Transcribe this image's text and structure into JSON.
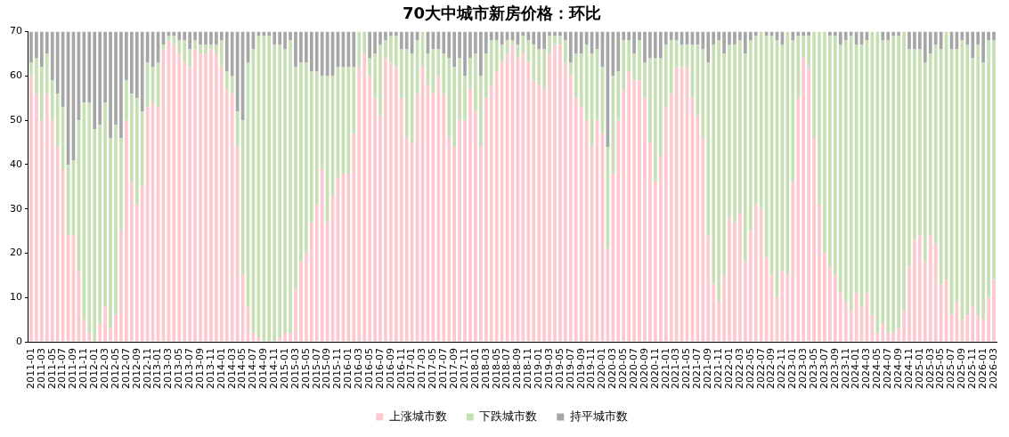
{
  "chart_data": {
    "type": "bar",
    "title": "70大中城市新房价格：环比",
    "stacked": true,
    "grid": false,
    "legend": "bottom",
    "categories": [
      "2011-01",
      null,
      "2011-03",
      null,
      "2011-05",
      null,
      "2011-07",
      null,
      "2011-09",
      null,
      "2011-11",
      null,
      "2012-01",
      null,
      "2012-03",
      null,
      "2012-05",
      null,
      "2012-07",
      null,
      "2012-09",
      null,
      "2012-11",
      null,
      "2013-01",
      null,
      "2013-03",
      null,
      "2013-05",
      null,
      "2013-07",
      null,
      "2013-09",
      null,
      "2013-11",
      null,
      "2014-01",
      null,
      "2014-03",
      null,
      "2014-05",
      null,
      "2014-07",
      null,
      "2014-09",
      null,
      "2014-11",
      null,
      "2015-01",
      null,
      "2015-03",
      null,
      "2015-05",
      null,
      "2015-07",
      null,
      "2015-09",
      null,
      "2015-11",
      null,
      "2016-01",
      null,
      "2016-03",
      null,
      "2016-05",
      null,
      "2016-07",
      null,
      "2016-09",
      null,
      "2016-11",
      null,
      "2017-01",
      null,
      "2017-03",
      null,
      "2017-05",
      null,
      "2017-07",
      null,
      "2017-09",
      null,
      "2017-11",
      null,
      "2018-01",
      null,
      "2018-03",
      null,
      "2018-05",
      null,
      "2018-07",
      null,
      "2018-09",
      null,
      "2018-11",
      null,
      "2019-01",
      null,
      "2019-03",
      null,
      "2019-05",
      null,
      "2019-07",
      null,
      "2019-09",
      null,
      "2019-11",
      null,
      "2020-01",
      null,
      "2020-03",
      null,
      "2020-05",
      null,
      "2020-07",
      null,
      "2020-09",
      null,
      "2020-11",
      null,
      "2021-01",
      null,
      "2021-03",
      null,
      "2021-05",
      null,
      "2021-07",
      null,
      "2021-09",
      null,
      "2021-11",
      null,
      "2022-01",
      null,
      "2022-03",
      null,
      "2022-05",
      null,
      "2022-07",
      null,
      "2022-09",
      null,
      "2022-11",
      null,
      "2023-01",
      null,
      "2023-03",
      null,
      "2023-05",
      null,
      "2023-07",
      null,
      "2023-09",
      null,
      "2023-11",
      null,
      "2024-01",
      null,
      "2024-03",
      null,
      "2024-05",
      null,
      "2024-07",
      null,
      "2024-09",
      null,
      "2024-11",
      null,
      "2025-01",
      null,
      "2025-03",
      null,
      "2025-05",
      null,
      "2025-07",
      null,
      "2025-09",
      null,
      "2025-11",
      null,
      "2026-01",
      null,
      "2026-03"
    ],
    "ylim": [
      0,
      70
    ],
    "yticks": [
      0,
      10,
      20,
      30,
      40,
      50,
      60,
      70
    ],
    "series": [
      {
        "name": "上涨城市数",
        "color": "#ffc7ce",
        "values": [
          60,
          56,
          50,
          56,
          50,
          44,
          39,
          24,
          24,
          16,
          5,
          2,
          0,
          4,
          8,
          3,
          6,
          25,
          50,
          36,
          31,
          35,
          53,
          54,
          53,
          66,
          68,
          67,
          65,
          63,
          62,
          66,
          65,
          65,
          66,
          65,
          62,
          57,
          56,
          44,
          15,
          8,
          2,
          1,
          0,
          0,
          0,
          1,
          2,
          2,
          12,
          18,
          20,
          27,
          31,
          39,
          27,
          33,
          37,
          38,
          38,
          47,
          62,
          65,
          60,
          55,
          51,
          64,
          63,
          62,
          55,
          46,
          45,
          56,
          62,
          58,
          56,
          60,
          56,
          46,
          44,
          50,
          50,
          57,
          52,
          44,
          55,
          58,
          61,
          63,
          65,
          67,
          64,
          65,
          63,
          59,
          58,
          57,
          65,
          67,
          67,
          63,
          60,
          55,
          53,
          50,
          44,
          50,
          47,
          21,
          38,
          50,
          57,
          61,
          59,
          59,
          55,
          45,
          36,
          42,
          53,
          56,
          62,
          62,
          62,
          55,
          51,
          46,
          24,
          13,
          9,
          15,
          28,
          27,
          29,
          18,
          25,
          31,
          30,
          19,
          15,
          10,
          16,
          15,
          36,
          55,
          64,
          62,
          46,
          31,
          20,
          17,
          15,
          11,
          9,
          7,
          11,
          8,
          11,
          6,
          2,
          4,
          2,
          2,
          3,
          7,
          17,
          23,
          24,
          18,
          24,
          22,
          13,
          14,
          6,
          9,
          5,
          6,
          8,
          6,
          5,
          10,
          14
        ]
      },
      {
        "name": "下跌城市数",
        "color": "#c6e0b4",
        "values": [
          3,
          8,
          12,
          9,
          9,
          12,
          14,
          16,
          17,
          34,
          49,
          52,
          48,
          45,
          46,
          43,
          43,
          21,
          9,
          20,
          24,
          17,
          10,
          8,
          10,
          1,
          1,
          2,
          3,
          5,
          4,
          2,
          2,
          2,
          1,
          2,
          6,
          4,
          4,
          8,
          35,
          55,
          64,
          68,
          69,
          69,
          67,
          66,
          64,
          66,
          50,
          45,
          43,
          34,
          30,
          21,
          33,
          27,
          25,
          24,
          24,
          15,
          8,
          5,
          4,
          10,
          16,
          4,
          6,
          7,
          11,
          20,
          20,
          12,
          8,
          7,
          10,
          6,
          9,
          18,
          18,
          14,
          10,
          7,
          13,
          16,
          10,
          10,
          7,
          4,
          3,
          1,
          3,
          4,
          5,
          8,
          8,
          9,
          4,
          2,
          2,
          5,
          3,
          10,
          12,
          17,
          21,
          16,
          15,
          23,
          22,
          11,
          11,
          7,
          6,
          9,
          8,
          19,
          28,
          22,
          14,
          12,
          6,
          5,
          5,
          12,
          16,
          20,
          39,
          54,
          59,
          50,
          39,
          40,
          39,
          47,
          43,
          38,
          40,
          50,
          54,
          58,
          51,
          55,
          32,
          14,
          5,
          7,
          24,
          39,
          50,
          52,
          54,
          56,
          59,
          62,
          56,
          59,
          57,
          64,
          68,
          64,
          66,
          67,
          66,
          63,
          49,
          43,
          42,
          45,
          41,
          45,
          53,
          56,
          60,
          57,
          63,
          61,
          56,
          61,
          58,
          58,
          54
        ]
      },
      {
        "name": "持平城市数",
        "color": "#a6a6a6",
        "values": [
          7,
          6,
          8,
          5,
          11,
          14,
          17,
          30,
          29,
          20,
          16,
          16,
          22,
          21,
          16,
          24,
          21,
          24,
          11,
          14,
          15,
          18,
          7,
          8,
          7,
          3,
          1,
          1,
          2,
          2,
          4,
          2,
          3,
          3,
          3,
          3,
          2,
          9,
          10,
          18,
          20,
          7,
          4,
          1,
          1,
          1,
          3,
          3,
          4,
          2,
          8,
          7,
          7,
          9,
          9,
          10,
          10,
          10,
          8,
          8,
          8,
          8,
          0,
          0,
          6,
          5,
          3,
          2,
          1,
          1,
          4,
          4,
          5,
          2,
          0,
          5,
          4,
          4,
          5,
          6,
          8,
          6,
          10,
          6,
          5,
          10,
          5,
          2,
          2,
          3,
          2,
          2,
          3,
          1,
          2,
          3,
          4,
          4,
          1,
          1,
          1,
          2,
          7,
          5,
          5,
          3,
          5,
          4,
          8,
          26,
          10,
          9,
          2,
          2,
          5,
          2,
          7,
          6,
          6,
          6,
          3,
          2,
          2,
          3,
          3,
          3,
          3,
          4,
          7,
          3,
          2,
          5,
          3,
          3,
          2,
          5,
          2,
          1,
          0,
          1,
          1,
          2,
          3,
          0,
          2,
          1,
          1,
          1,
          0,
          0,
          0,
          1,
          1,
          3,
          2,
          1,
          3,
          3,
          2,
          0,
          0,
          2,
          2,
          1,
          1,
          0,
          4,
          4,
          4,
          7,
          5,
          3,
          4,
          0,
          4,
          4,
          2,
          3,
          6,
          3,
          7,
          2,
          2
        ]
      }
    ]
  }
}
